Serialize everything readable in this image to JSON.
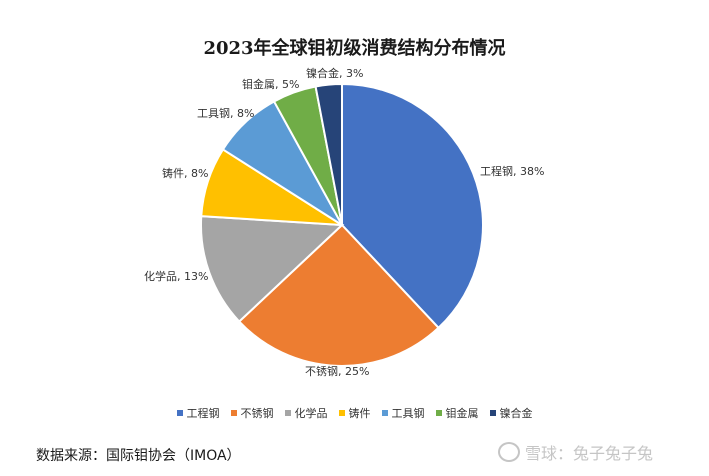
{
  "chart_data": {
    "type": "pie",
    "title": "2023年全球钼初级消费结构分布情况",
    "categories": [
      "工程钢",
      "不锈钢",
      "化学品",
      "铸件",
      "工具钢",
      "钼金属",
      "镍合金"
    ],
    "values": [
      38,
      25,
      13,
      8,
      8,
      5,
      3
    ],
    "unit": "%",
    "slice_labels": [
      "工程钢, 38%",
      "不锈钢, 25%",
      "化学品, 13%",
      "铸件, 8%",
      "工具钢, 8%",
      "钼金属, 5%",
      "镍合金, 3%"
    ],
    "colors": [
      "#4472C4",
      "#ED7D31",
      "#A5A5A5",
      "#FFC000",
      "#5B9BD5",
      "#70AD47",
      "#264478"
    ],
    "legend_position": "bottom",
    "start_angle": "12 o'clock",
    "direction": "clockwise"
  },
  "source_text": "数据来源：国际钼协会（IMOA）",
  "watermark": {
    "text": "雪球：兔子兔子兔",
    "icon": "snowball-logo-icon"
  }
}
